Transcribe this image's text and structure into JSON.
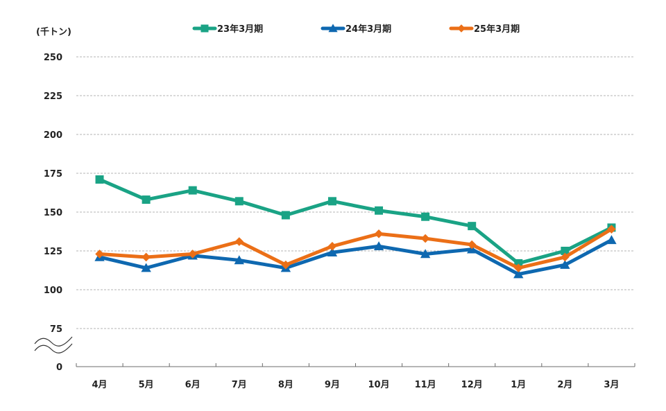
{
  "chart_data": {
    "type": "line",
    "unit_label": "(千トン)",
    "categories": [
      "4月",
      "5月",
      "6月",
      "7月",
      "8月",
      "9月",
      "10月",
      "11月",
      "12月",
      "1月",
      "2月",
      "3月"
    ],
    "y_ticks": [
      "0",
      "75",
      "100",
      "125",
      "150",
      "175",
      "200",
      "225",
      "250"
    ],
    "ylim": [
      0,
      250
    ],
    "axis_break": "between 0 and 75",
    "grid": true,
    "legend_position": "top",
    "series": [
      {
        "name": "23年3月期",
        "color": "#1aa385",
        "marker": "square",
        "values": [
          171,
          158,
          164,
          157,
          148,
          157,
          151,
          147,
          141,
          117,
          125,
          140
        ]
      },
      {
        "name": "24年3月期",
        "color": "#0e68b0",
        "marker": "triangle",
        "values": [
          121,
          114,
          122,
          119,
          114,
          124,
          128,
          123,
          126,
          110,
          116,
          132
        ]
      },
      {
        "name": "25年3月期",
        "color": "#eb6f17",
        "marker": "diamond",
        "values": [
          123,
          121,
          123,
          131,
          116,
          128,
          136,
          133,
          129,
          114,
          121,
          139
        ]
      }
    ]
  }
}
